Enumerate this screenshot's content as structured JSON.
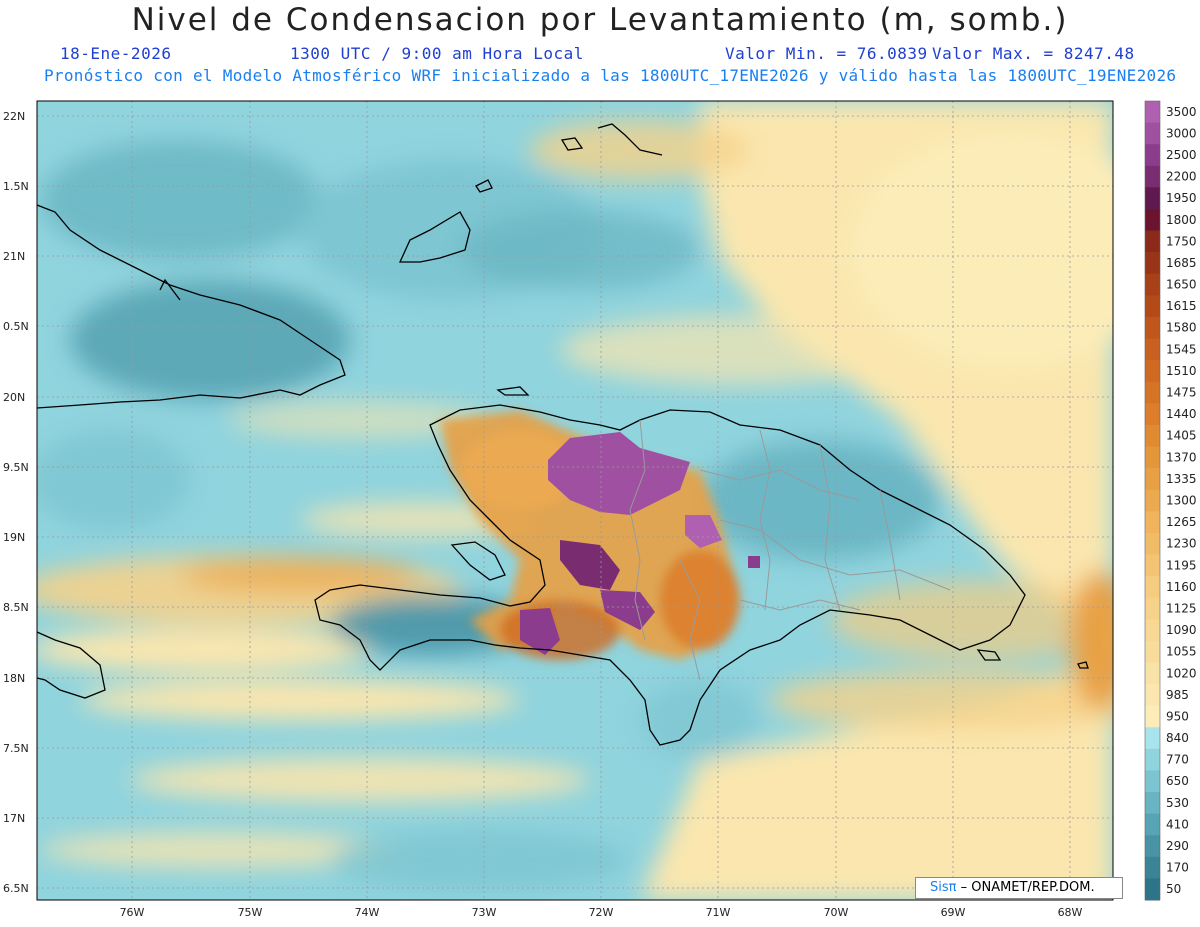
{
  "header": {
    "title": "Nivel de Condensacion por Levantamiento (m, somb.)",
    "date": "18-Ene-2026",
    "time": "1300 UTC / 9:00 am Hora Local",
    "min_label": "Valor Min. = 76.0839",
    "max_label": "Valor Max. = 8247.48",
    "subtitle": "Pronóstico con el Modelo Atmosférico WRF inicializado a las 1800UTC_17ENE2026 y válido hasta las  1800UTC_19ENE2026"
  },
  "map": {
    "lat_labels": [
      "22N",
      "1.5N",
      "21N",
      "0.5N",
      "20N",
      "9.5N",
      "19N",
      "8.5N",
      "18N",
      "7.5N",
      "17N",
      "6.5N"
    ],
    "lon_labels": [
      "76W",
      "75W",
      "74W",
      "73W",
      "72W",
      "71W",
      "70W",
      "69W",
      "68W"
    ]
  },
  "colorbar": {
    "levels": [
      "3500",
      "3000",
      "2500",
      "2200",
      "1950",
      "1800",
      "1750",
      "1685",
      "1650",
      "1615",
      "1580",
      "1545",
      "1510",
      "1475",
      "1440",
      "1405",
      "1370",
      "1335",
      "1300",
      "1265",
      "1230",
      "1195",
      "1160",
      "1125",
      "1090",
      "1055",
      "1020",
      "985",
      "950",
      "840",
      "770",
      "650",
      "530",
      "410",
      "290",
      "170",
      "50"
    ],
    "colors": [
      "#b060b0",
      "#a050a0",
      "#8c3c8c",
      "#7a2c70",
      "#5e1a4e",
      "#6a1430",
      "#8c2a1a",
      "#9a3418",
      "#a84018",
      "#b44a18",
      "#c0561c",
      "#c86020",
      "#d06a22",
      "#d67426",
      "#dc7e2c",
      "#e08a32",
      "#e4963a",
      "#e8a044",
      "#ecaa50",
      "#efb45c",
      "#f1bc68",
      "#f3c474",
      "#f5cc80",
      "#f6d28a",
      "#f7d894",
      "#f8dc9c",
      "#f9e2a6",
      "#fae6ae",
      "#fcecb8",
      "#a8e4ec",
      "#90d4de",
      "#7cc4d0",
      "#68b4c2",
      "#56a4b4",
      "#4894a6",
      "#3a8496",
      "#2e7488"
    ]
  },
  "credit": {
    "sis": "Sisπ",
    "org": " – ONAMET/REP.DOM."
  }
}
